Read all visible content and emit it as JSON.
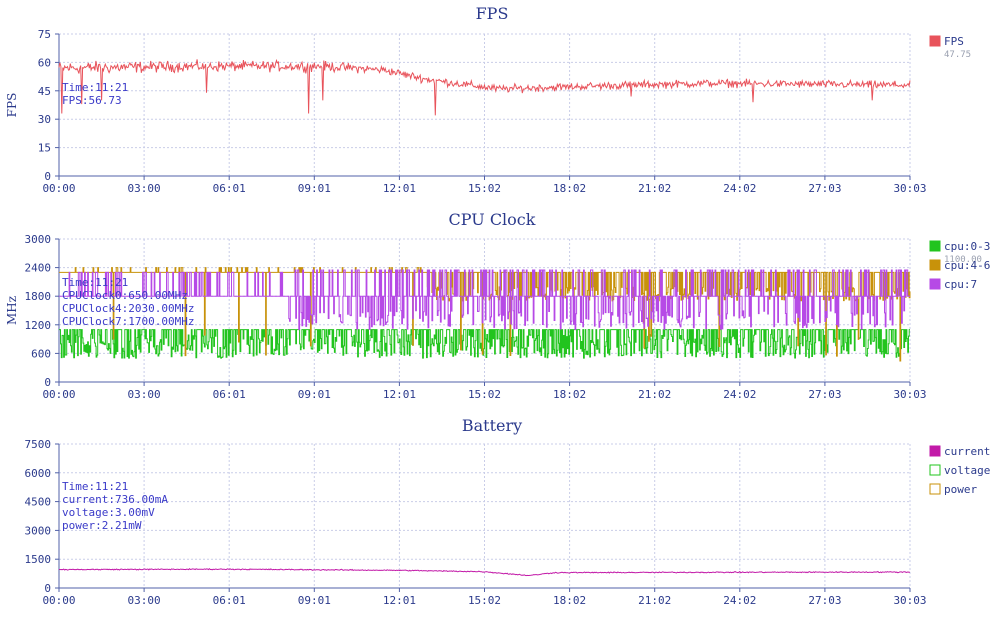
{
  "chart_data": [
    {
      "type": "line",
      "title": "FPS",
      "ylabel": "FPS",
      "ylim": [
        0,
        75
      ],
      "yticks": [
        0,
        15,
        30,
        45,
        60,
        75
      ],
      "xticks": [
        "00:00",
        "03:00",
        "06:01",
        "09:01",
        "12:01",
        "15:02",
        "18:02",
        "21:02",
        "24:02",
        "27:03",
        "30:03"
      ],
      "grid": true,
      "legend_position": "right",
      "tooltip": [
        "Time:11:21",
        "FPS:56.73"
      ],
      "series": [
        {
          "name": "FPS",
          "color": "#e8535b",
          "legend_value": "47.75",
          "trend": [
            {
              "t": 0,
              "y": 57,
              "jitter": 5
            },
            {
              "t": 5.0,
              "y": 58,
              "jitter": 4
            },
            {
              "t": 9.3,
              "y": 58,
              "jitter": 4
            },
            {
              "t": 11.5,
              "y": 56,
              "jitter": 3
            },
            {
              "t": 13.0,
              "y": 51,
              "jitter": 3
            },
            {
              "t": 15.5,
              "y": 46,
              "jitter": 3
            },
            {
              "t": 20.0,
              "y": 48,
              "jitter": 3
            },
            {
              "t": 23.0,
              "y": 49,
              "jitter": 3
            },
            {
              "t": 30.05,
              "y": 48,
              "jitter": 3
            }
          ],
          "dips": [
            {
              "t": 0.1,
              "y": 33
            },
            {
              "t": 0.8,
              "y": 38
            },
            {
              "t": 1.5,
              "y": 40
            },
            {
              "t": 5.2,
              "y": 44
            },
            {
              "t": 8.8,
              "y": 33
            },
            {
              "t": 9.3,
              "y": 40
            },
            {
              "t": 13.3,
              "y": 32
            },
            {
              "t": 20.2,
              "y": 42
            },
            {
              "t": 24.5,
              "y": 39
            },
            {
              "t": 28.7,
              "y": 40
            }
          ]
        }
      ]
    },
    {
      "type": "line",
      "title": "CPU Clock",
      "ylabel": "MHz",
      "ylim": [
        0,
        3000
      ],
      "yticks": [
        0,
        600,
        1200,
        1800,
        2400,
        3000
      ],
      "xticks": [
        "00:00",
        "03:00",
        "06:01",
        "09:01",
        "12:01",
        "15:02",
        "18:02",
        "21:02",
        "24:02",
        "27:03",
        "30:03"
      ],
      "grid": true,
      "legend_position": "right",
      "tooltip": [
        "Time:11:21",
        "CPUClock0:650.00MHz",
        "CPUClock4:2030.00MHz",
        "CPUClock7:1700.00MHz"
      ],
      "series": [
        {
          "name": "cpu:0-3",
          "color": "#22c41e",
          "legend_value": "1100.00",
          "base": 1100,
          "low": 500,
          "lowRange": [
            500,
            1000
          ]
        },
        {
          "name": "cpu:4-6",
          "color": "#c8920a",
          "base": 2300,
          "low": 1800,
          "lowRange": [
            1700,
            2000
          ]
        },
        {
          "name": "cpu:7",
          "color": "#b64ae6",
          "base": 1800,
          "low": 1300,
          "lowRange": [
            1100,
            1500
          ]
        }
      ]
    },
    {
      "type": "line",
      "title": "Battery",
      "ylabel": "",
      "ylim": [
        0,
        7500
      ],
      "yticks": [
        0,
        1500,
        3000,
        4500,
        6000,
        7500
      ],
      "xticks": [
        "00:00",
        "03:00",
        "06:01",
        "09:01",
        "12:01",
        "15:02",
        "18:02",
        "21:02",
        "24:02",
        "27:03",
        "30:03"
      ],
      "grid": true,
      "legend_position": "right",
      "tooltip": [
        "Time:11:21",
        "current:736.00mA",
        "voltage:3.00mV",
        "power:2.21mW"
      ],
      "series": [
        {
          "name": "current",
          "color": "#c21aa8",
          "trend": [
            {
              "t": 0,
              "y": 960
            },
            {
              "t": 6.0,
              "y": 980
            },
            {
              "t": 12.0,
              "y": 920
            },
            {
              "t": 15.0,
              "y": 850
            },
            {
              "t": 16.6,
              "y": 650
            },
            {
              "t": 17.5,
              "y": 800
            },
            {
              "t": 24.0,
              "y": 820
            },
            {
              "t": 30.05,
              "y": 830
            }
          ]
        },
        {
          "name": "voltage",
          "color": "#22c41e"
        },
        {
          "name": "power",
          "color": "#c8920a"
        }
      ]
    }
  ]
}
